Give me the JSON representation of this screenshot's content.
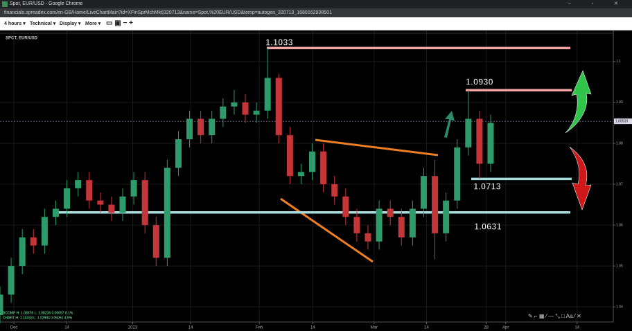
{
  "window": {
    "title": "Spot, EUR/USD - Google Chrome",
    "url": "financials.spreadex.com/en-GB/Home/LiveChartMain?id=XFinSprMchMkt|320713&name=Spot,%20EUR/USD&temp=autogen_320713_1680162938501"
  },
  "toolbar": {
    "items": [
      "4 hours",
      "Technical",
      "Display",
      "More"
    ]
  },
  "chart_data": {
    "type": "candlestick",
    "title": "SPOT, EUR/USD",
    "x": [
      0,
      2,
      4,
      6,
      8,
      10,
      12,
      14,
      16,
      18,
      20,
      22,
      24,
      26,
      28,
      30,
      32,
      34,
      36,
      38,
      40,
      42,
      44,
      46,
      48,
      50,
      52,
      54,
      56,
      58,
      60,
      62,
      64,
      66,
      68,
      70,
      72,
      74,
      76,
      78,
      80,
      82,
      84,
      86,
      88
    ],
    "open": [
      1.038,
      1.043,
      1.05,
      1.057,
      1.055,
      1.062,
      1.064,
      1.069,
      1.071,
      1.066,
      1.065,
      1.063,
      1.067,
      1.071,
      1.06,
      1.052,
      1.074,
      1.081,
      1.086,
      1.082,
      1.086,
      1.089,
      1.09,
      1.087,
      1.088,
      1.096,
      1.082,
      1.072,
      1.073,
      1.078,
      1.07,
      1.067,
      1.062,
      1.058,
      1.056,
      1.064,
      1.062,
      1.057,
      1.064,
      1.072,
      1.058,
      1.066,
      1.079,
      1.086,
      1.075
    ],
    "high": [
      1.045,
      1.052,
      1.059,
      1.059,
      1.064,
      1.066,
      1.071,
      1.073,
      1.073,
      1.068,
      1.067,
      1.069,
      1.073,
      1.073,
      1.062,
      1.076,
      1.083,
      1.088,
      1.088,
      1.088,
      1.091,
      1.093,
      1.092,
      1.09,
      1.1033,
      1.097,
      1.084,
      1.075,
      1.08,
      1.08,
      1.072,
      1.069,
      1.064,
      1.06,
      1.066,
      1.066,
      1.064,
      1.066,
      1.074,
      1.076,
      1.068,
      1.081,
      1.093,
      1.088,
      1.087
    ],
    "low": [
      1.036,
      1.041,
      1.048,
      1.053,
      1.053,
      1.06,
      1.062,
      1.067,
      1.064,
      1.063,
      1.061,
      1.061,
      1.065,
      1.058,
      1.05,
      1.05,
      1.072,
      1.079,
      1.08,
      1.08,
      1.084,
      1.087,
      1.085,
      1.085,
      1.086,
      1.08,
      1.07,
      1.07,
      1.071,
      1.068,
      1.065,
      1.06,
      1.056,
      1.054,
      1.054,
      1.06,
      1.055,
      1.055,
      1.062,
      1.0516,
      1.056,
      1.064,
      1.077,
      1.0713,
      1.073
    ],
    "close": [
      1.043,
      1.05,
      1.057,
      1.055,
      1.062,
      1.064,
      1.069,
      1.071,
      1.066,
      1.065,
      1.063,
      1.067,
      1.071,
      1.06,
      1.052,
      1.074,
      1.081,
      1.086,
      1.082,
      1.086,
      1.089,
      1.09,
      1.087,
      1.088,
      1.096,
      1.082,
      1.072,
      1.073,
      1.078,
      1.07,
      1.067,
      1.062,
      1.058,
      1.056,
      1.064,
      1.062,
      1.057,
      1.064,
      1.072,
      1.058,
      1.066,
      1.079,
      1.086,
      1.075,
      1.085
    ],
    "up_color": "#2e9c6a",
    "down_color": "#c4363a",
    "xlim": [
      0,
      110
    ],
    "xticks": [
      {
        "value": 2.5,
        "label": "Dec"
      },
      {
        "value": 12,
        "label": "14"
      },
      {
        "value": 23.8,
        "label": "2023"
      },
      {
        "value": 34.2,
        "label": "14"
      },
      {
        "value": 46.5,
        "label": "Feb"
      },
      {
        "value": 56.1,
        "label": "14"
      },
      {
        "value": 67.1,
        "label": "Mar"
      },
      {
        "value": 76.5,
        "label": "14"
      },
      {
        "value": 87.2,
        "label": "28"
      },
      {
        "value": 90.7,
        "label": "Apr"
      },
      {
        "value": 103.5,
        "label": "14"
      }
    ],
    "ylim": [
      1.0363,
      1.1076
    ],
    "yticks": [
      1.04,
      1.05,
      1.06,
      1.07,
      1.08,
      1.09,
      1.1
    ],
    "grid": true,
    "last_price": 1.08539,
    "levels": {
      "values": [
        1.1033,
        1.093,
        1.0713,
        1.0631
      ],
      "value_labels": [
        "1.1033",
        "1.0930",
        "1.0713",
        "1.0631"
      ],
      "colors": [
        "#f4a6a6",
        "#f4a6a6",
        "#a8dcdc",
        "#a8dcdc"
      ]
    },
    "info": [
      "SCOMP  H: 1.08576  L: 1.08236  0.00097  0.1%",
      "CHART  H: 1.10333  L: 1.02904  0.05051  4.9%"
    ]
  }
}
